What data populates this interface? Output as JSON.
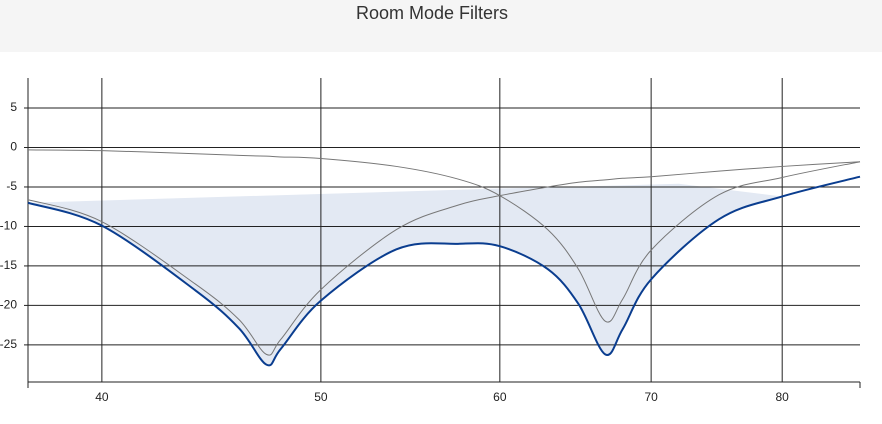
{
  "chart_data": {
    "type": "line",
    "title": "Room Mode Filters",
    "xscale": "log",
    "grid": true,
    "xlim": [
      37.1,
      86.6
    ],
    "xticks": [
      40,
      50,
      60,
      70,
      80
    ],
    "ylim": [
      -29.7,
      8.8
    ],
    "yticks": [
      5,
      0,
      -5,
      -10,
      -15,
      -20,
      -25
    ],
    "x": [
      37.1,
      40,
      44,
      46,
      47.3,
      48,
      50,
      54,
      57.5,
      60,
      63,
      65,
      66.8,
      68,
      70,
      75,
      80,
      86.6
    ],
    "series": [
      {
        "color": "#777777",
        "width": 1,
        "values": [
          -6.6,
          -9.4,
          -17.3,
          -21.8,
          -26.2,
          -24.3,
          -18,
          -10.4,
          -7.3,
          -6.1,
          -5.0,
          -4.4,
          -4.1,
          -3.9,
          -3.7,
          -3.0,
          -2.4,
          -1.8
        ]
      },
      {
        "color": "#777777",
        "width": 1,
        "values": [
          -0.3,
          -0.4,
          -0.8,
          -1.0,
          -1.1,
          -1.2,
          -1.4,
          -2.4,
          -4.0,
          -6.1,
          -10.4,
          -15.4,
          -22,
          -19.2,
          -13,
          -6,
          -3.8,
          -1.8
        ]
      },
      {
        "color": "#0a3d8f",
        "width": 2,
        "values": [
          -7.0,
          -9.9,
          -18.1,
          -22.9,
          -27.5,
          -25.5,
          -19.4,
          -12.9,
          -12.2,
          -12.5,
          -15.4,
          -19.8,
          -26.2,
          -23,
          -16.7,
          -9.1,
          -6.2,
          -3.7
        ]
      }
    ],
    "fill": {
      "color": "#e3e9f3",
      "x": [
        37.1,
        60,
        72,
        80
      ],
      "upper": [
        -7.0,
        -5.2,
        -4.6,
        -6.2
      ]
    }
  }
}
